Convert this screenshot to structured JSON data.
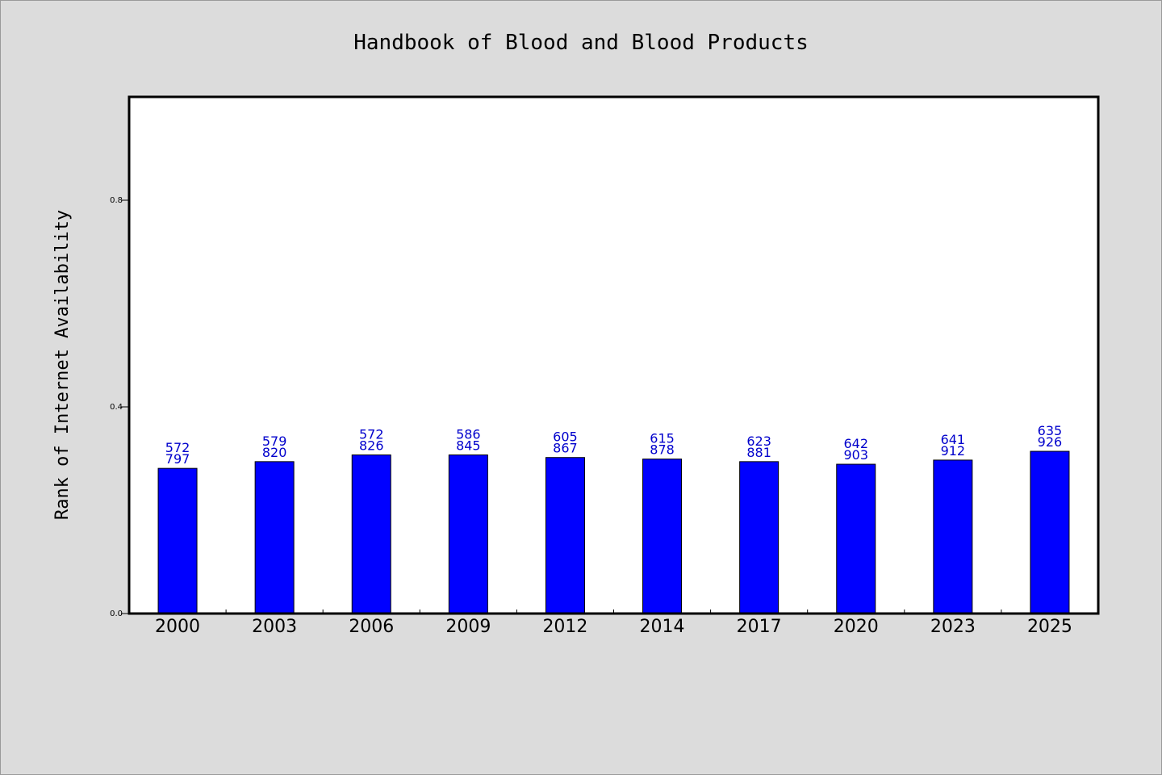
{
  "chart_data": {
    "type": "bar",
    "title": "Handbook of Blood and Blood Products",
    "xlabel": "",
    "ylabel": "Rank of Internet Availability",
    "categories": [
      "2000",
      "2003",
      "2006",
      "2009",
      "2012",
      "2014",
      "2017",
      "2020",
      "2023",
      "2025"
    ],
    "values": [
      0.281,
      0.294,
      0.307,
      0.307,
      0.302,
      0.299,
      0.294,
      0.289,
      0.297,
      0.314
    ],
    "labels_top": [
      "572",
      "579",
      "572",
      "586",
      "605",
      "615",
      "623",
      "642",
      "641",
      "635"
    ],
    "labels_bottom": [
      "797",
      "820",
      "826",
      "845",
      "867",
      "878",
      "881",
      "903",
      "912",
      "926"
    ],
    "ylim": [
      0,
      1.0
    ],
    "yticks": [
      0.0,
      0.4,
      0.8
    ],
    "ytick_labels": [
      "0.0",
      "0.4",
      "0.8"
    ],
    "grid": false,
    "bar_color": "#0000ff",
    "label_color": "#0000cc",
    "background": "#dcdcdc",
    "plot_background": "#ffffff"
  }
}
